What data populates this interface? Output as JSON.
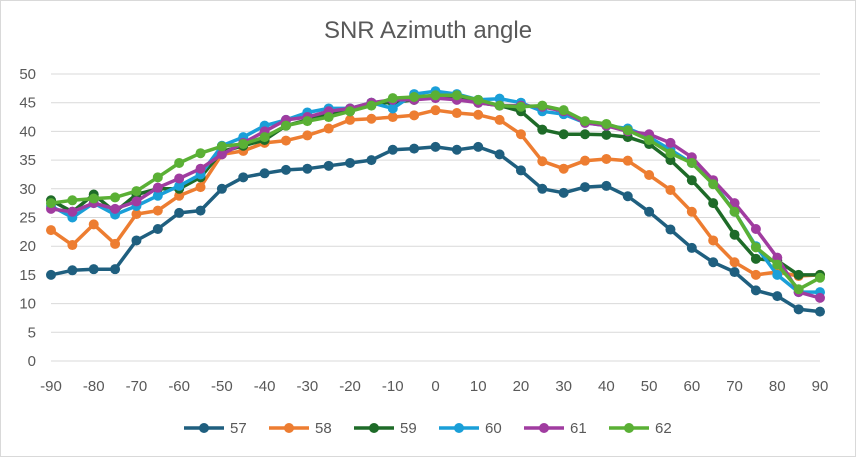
{
  "chart_data": {
    "type": "line",
    "title": "SNR Azimuth angle",
    "xlabel": "",
    "ylabel": "",
    "x": [
      -90,
      -85,
      -80,
      -75,
      -70,
      -65,
      -60,
      -55,
      -50,
      -45,
      -40,
      -35,
      -30,
      -25,
      -20,
      -15,
      -10,
      -5,
      0,
      5,
      10,
      15,
      20,
      25,
      30,
      35,
      40,
      45,
      50,
      55,
      60,
      65,
      70,
      75,
      80,
      85,
      90
    ],
    "x_ticks": [
      "-90",
      "-80",
      "-70",
      "-60",
      "-50",
      "-40",
      "-30",
      "-20",
      "-10",
      "0",
      "10",
      "20",
      "30",
      "40",
      "50",
      "60",
      "70",
      "80",
      "90"
    ],
    "x_tick_values": [
      -90,
      -80,
      -70,
      -60,
      -50,
      -40,
      -30,
      -20,
      -10,
      0,
      10,
      20,
      30,
      40,
      50,
      60,
      70,
      80,
      90
    ],
    "y_ticks": [
      "0",
      "5",
      "10",
      "15",
      "20",
      "25",
      "30",
      "35",
      "40",
      "45",
      "50"
    ],
    "y_tick_values": [
      0,
      5,
      10,
      15,
      20,
      25,
      30,
      35,
      40,
      45,
      50
    ],
    "xlim": [
      -90,
      90
    ],
    "ylim": [
      0,
      50
    ],
    "grid": true,
    "legend_position": "bottom",
    "series": [
      {
        "name": "57",
        "color": "#1f5f7f",
        "values": [
          15,
          15.8,
          16,
          16,
          21,
          23,
          25.8,
          26.2,
          30,
          32,
          32.7,
          33.3,
          33.5,
          34,
          34.5,
          35,
          36.8,
          37,
          37.3,
          36.8,
          37.3,
          36,
          33.2,
          30,
          29.3,
          30.3,
          30.5,
          28.7,
          26,
          22.9,
          19.7,
          17.2,
          15.5,
          12.3,
          11.3,
          9,
          8.6
        ]
      },
      {
        "name": "58",
        "color": "#ed7d31",
        "values": [
          22.8,
          20.2,
          23.8,
          20.4,
          25.6,
          26.2,
          28.8,
          30.3,
          36,
          36.6,
          38,
          38.4,
          39.3,
          40.5,
          42,
          42.2,
          42.5,
          42.8,
          43.7,
          43.2,
          42.9,
          42,
          39.5,
          34.8,
          33.5,
          34.9,
          35.2,
          34.9,
          32.4,
          29.8,
          26,
          21,
          17.2,
          15,
          15.5,
          14.8,
          15
        ]
      },
      {
        "name": "59",
        "color": "#1e6b28",
        "values": [
          28,
          26,
          29,
          26,
          29,
          30,
          30,
          32,
          36.5,
          37.5,
          38.5,
          41,
          42,
          43,
          43.5,
          45,
          45,
          45.5,
          46,
          46,
          45,
          44.5,
          43.5,
          40.3,
          39.5,
          39.5,
          39.4,
          39,
          37.8,
          35,
          31.5,
          27.5,
          22,
          17.8,
          17.5,
          15,
          15
        ]
      },
      {
        "name": "60",
        "color": "#1a9fd8",
        "values": [
          27,
          25,
          27.5,
          25.5,
          27,
          28.8,
          30.5,
          32.5,
          37.5,
          39,
          41,
          42,
          43.3,
          44,
          44,
          45,
          44,
          46.5,
          47,
          46.5,
          45.5,
          45.7,
          45,
          43.5,
          43,
          41.5,
          41,
          40.5,
          39,
          36.8,
          34.5,
          31,
          26,
          20,
          15,
          12,
          12
        ]
      },
      {
        "name": "61",
        "color": "#a03ca0",
        "values": [
          26.5,
          26,
          27.5,
          26.5,
          27.8,
          30.2,
          31.8,
          33.5,
          36,
          38,
          40,
          42,
          42.5,
          43.5,
          44,
          45,
          45.5,
          45.5,
          45.8,
          45.5,
          45,
          44.5,
          44.5,
          44.3,
          43.5,
          41.5,
          41,
          40,
          39.5,
          38,
          35.5,
          31.5,
          27.5,
          23,
          18,
          12,
          11
        ]
      },
      {
        "name": "62",
        "color": "#5ab035",
        "values": [
          27.5,
          28,
          28.3,
          28.5,
          29.6,
          32,
          34.5,
          36.2,
          37.4,
          37.8,
          39,
          41,
          41.8,
          42.5,
          43.5,
          44.5,
          45.8,
          46,
          46.3,
          46.3,
          45.5,
          44.5,
          44.3,
          44.5,
          43.7,
          41.8,
          41.3,
          40.2,
          38.5,
          36.2,
          34.5,
          30.8,
          26,
          19.8,
          16.8,
          12.5,
          14.5
        ]
      }
    ]
  }
}
